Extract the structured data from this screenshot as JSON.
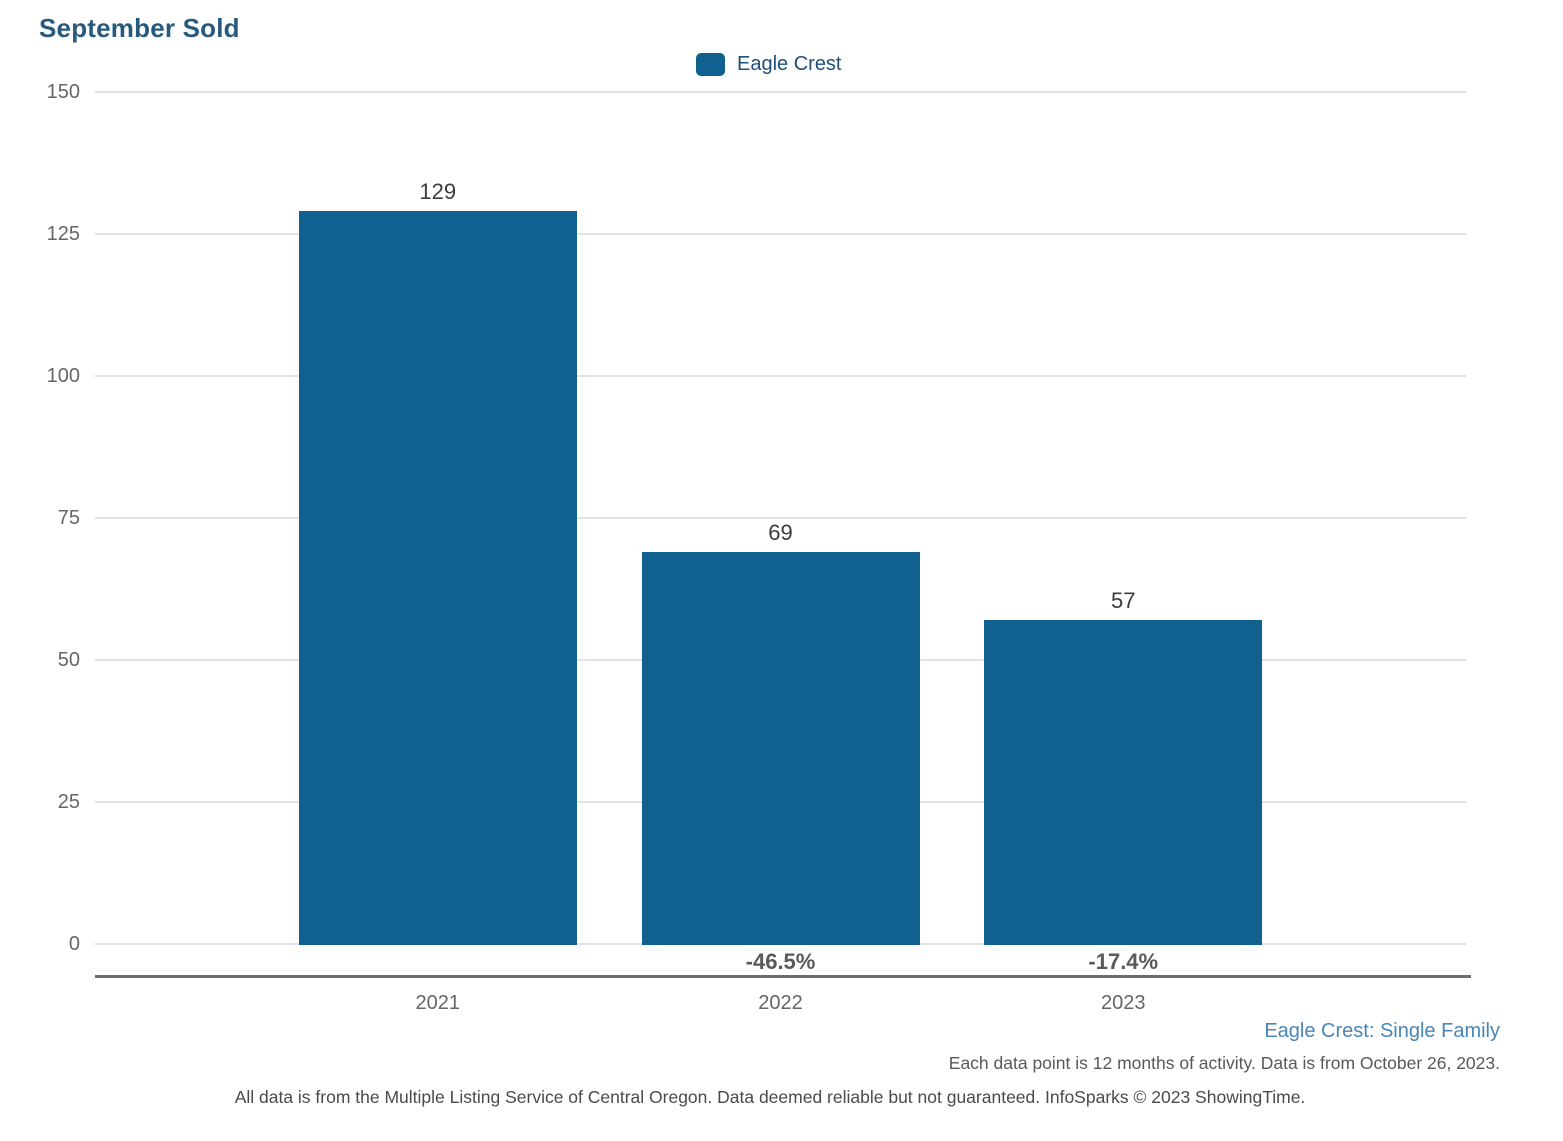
{
  "page": {
    "title": "September Sold"
  },
  "legend": {
    "label": "Eagle Crest",
    "swatch_color": "#106190"
  },
  "chart_data": {
    "type": "bar",
    "title": "September Sold",
    "categories": [
      "2021",
      "2022",
      "2023"
    ],
    "series": [
      {
        "name": "Eagle Crest",
        "values": [
          129,
          69,
          57
        ]
      }
    ],
    "value_labels": [
      "129",
      "69",
      "57"
    ],
    "pct_change_labels": [
      "",
      "-46.5%",
      "-17.4%"
    ],
    "yticks": [
      0,
      25,
      50,
      75,
      100,
      125,
      150
    ],
    "ylim": [
      0,
      150
    ],
    "xlabel": "",
    "ylabel": "",
    "bar_color": "#106190",
    "grid": "horizontal",
    "legend_position": "top-center"
  },
  "footnotes": {
    "scope": "Eagle Crest: Single Family",
    "data_note": "Each data point is 12 months of activity. Data is from October 26, 2023.",
    "disclaimer": "All data is from the Multiple Listing Service of Central Oregon. Data deemed reliable but not guaranteed. InfoSparks © 2023 ShowingTime."
  },
  "colors": {
    "title_text": "#285a7f",
    "legend_text": "#1f4e79",
    "bar": "#106190",
    "gridline": "#e2e2e2",
    "axis_line": "#6d6d6d",
    "tick_text": "#666666",
    "value_text": "#3c3c3c",
    "pct_text": "#58595b",
    "scope_text": "#4a85b5",
    "note_text": "#595959",
    "disclaimer_text": "#4a4a4a"
  }
}
